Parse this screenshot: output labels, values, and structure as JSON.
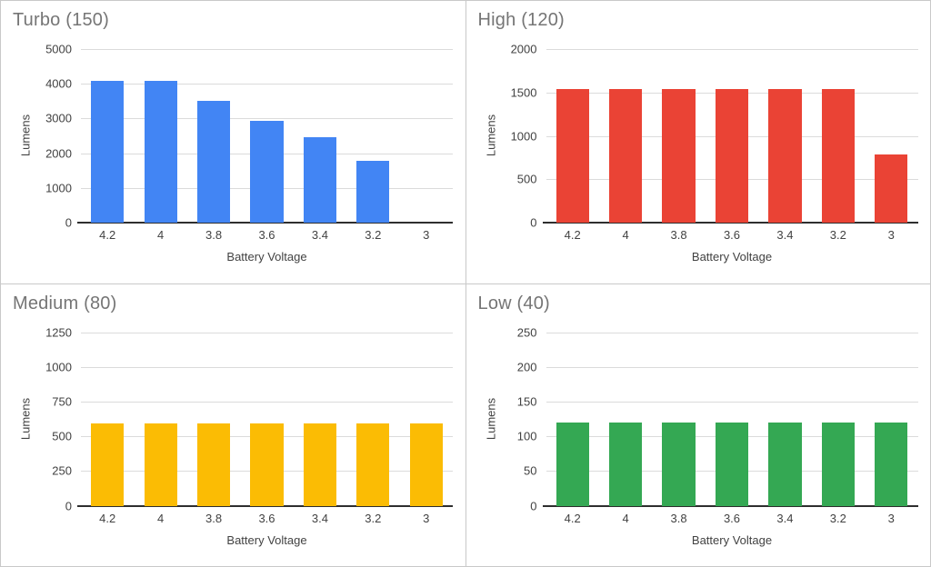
{
  "chart_data": [
    {
      "type": "bar",
      "title": "Turbo (150)",
      "xlabel": "Battery Voltage",
      "ylabel": "Lumens",
      "categories": [
        "4.2",
        "4",
        "3.8",
        "3.6",
        "3.4",
        "3.2",
        "3"
      ],
      "values": [
        4080,
        4080,
        3520,
        2940,
        2470,
        1780,
        0
      ],
      "yticks": [
        0,
        1000,
        2000,
        3000,
        4000,
        5000
      ],
      "ylim": [
        0,
        5000
      ],
      "bar_color": "#4285f4",
      "grid": true,
      "legend": "none"
    },
    {
      "type": "bar",
      "title": "High (120)",
      "xlabel": "Battery Voltage",
      "ylabel": "Lumens",
      "categories": [
        "4.2",
        "4",
        "3.8",
        "3.6",
        "3.4",
        "3.2",
        "3"
      ],
      "values": [
        1540,
        1540,
        1540,
        1540,
        1540,
        1540,
        790
      ],
      "yticks": [
        0,
        500,
        1000,
        1500,
        2000
      ],
      "ylim": [
        0,
        2000
      ],
      "bar_color": "#ea4335",
      "grid": true,
      "legend": "none"
    },
    {
      "type": "bar",
      "title": "Medium (80)",
      "xlabel": "Battery Voltage",
      "ylabel": "Lumens",
      "categories": [
        "4.2",
        "4",
        "3.8",
        "3.6",
        "3.4",
        "3.2",
        "3"
      ],
      "values": [
        590,
        590,
        590,
        590,
        590,
        590,
        590
      ],
      "yticks": [
        0,
        250,
        500,
        750,
        1000,
        1250
      ],
      "ylim": [
        0,
        1250
      ],
      "bar_color": "#fbbc04",
      "grid": true,
      "legend": "none"
    },
    {
      "type": "bar",
      "title": "Low (40)",
      "xlabel": "Battery Voltage",
      "ylabel": "Lumens",
      "categories": [
        "4.2",
        "4",
        "3.8",
        "3.6",
        "3.4",
        "3.2",
        "3"
      ],
      "values": [
        120,
        120,
        120,
        120,
        120,
        120,
        120
      ],
      "yticks": [
        0,
        50,
        100,
        150,
        200,
        250
      ],
      "ylim": [
        0,
        250
      ],
      "bar_color": "#34a853",
      "grid": true,
      "legend": "none"
    }
  ]
}
